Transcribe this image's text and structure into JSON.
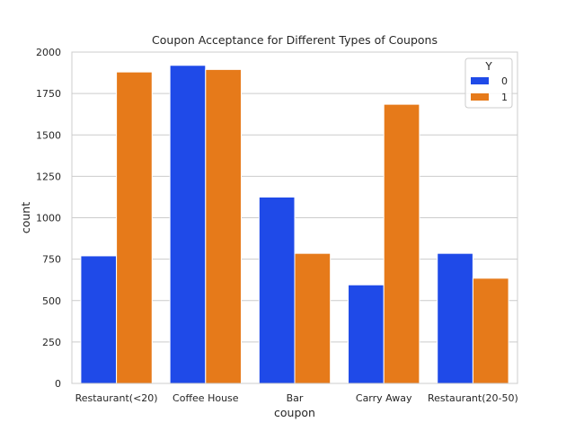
{
  "chart_data": {
    "type": "bar",
    "title": "Coupon Acceptance for Different Types of Coupons",
    "xlabel": "coupon",
    "ylabel": "count",
    "categories": [
      "Restaurant(<20)",
      "Coffee House",
      "Bar",
      "Carry Away",
      "Restaurant(20-50)"
    ],
    "series": [
      {
        "name": "0",
        "color": "#1f4ae8",
        "values": [
          770,
          1920,
          1125,
          595,
          785
        ]
      },
      {
        "name": "1",
        "color": "#e67a1a",
        "values": [
          1880,
          1895,
          785,
          1685,
          635
        ]
      }
    ],
    "ylim": [
      0,
      2000
    ],
    "yticks": [
      0,
      250,
      500,
      750,
      1000,
      1250,
      1500,
      1750,
      2000
    ],
    "grid": "horizontal",
    "legend": {
      "title": "Y",
      "placement": "top-right"
    }
  }
}
